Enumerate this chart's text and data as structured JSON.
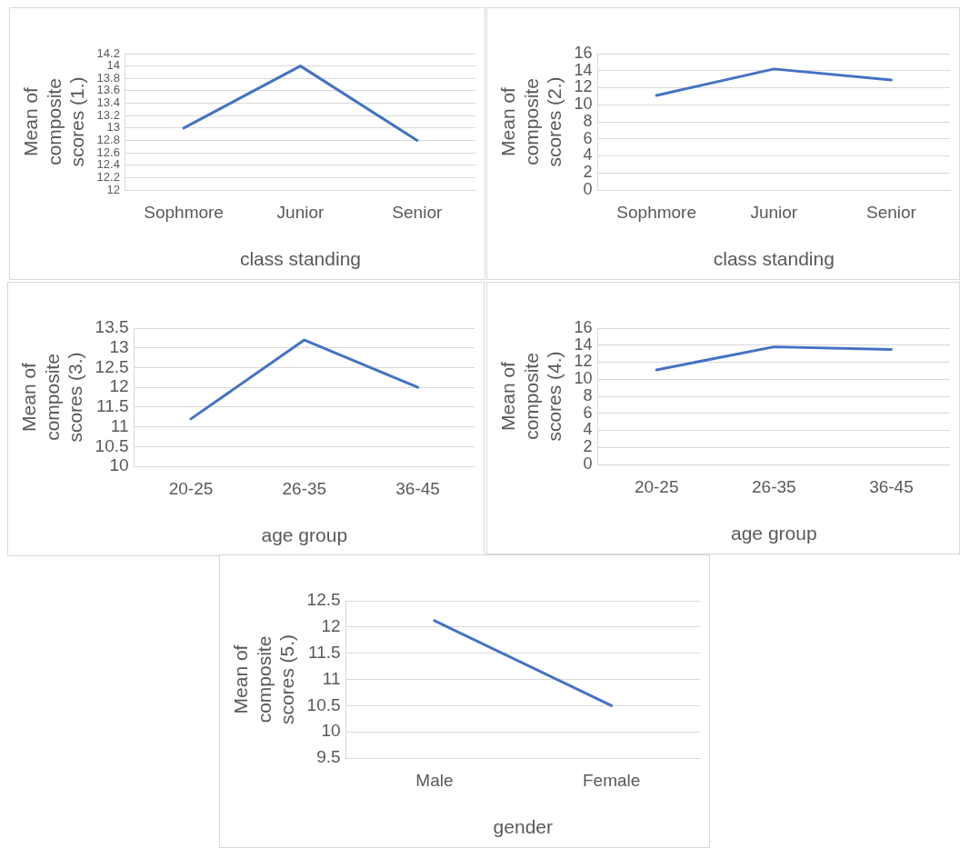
{
  "chart_data": [
    {
      "type": "line",
      "xlabel": "class standing",
      "ylabel": "Mean of composite scores (1.)",
      "categories": [
        "Sophmore",
        "Junior",
        "Senior"
      ],
      "series": [
        {
          "color": "#4472c4",
          "values": [
            13.0,
            14.0,
            12.8
          ]
        }
      ],
      "ylim": [
        12,
        14.2
      ],
      "yticks": [
        12,
        12.2,
        12.4,
        12.6,
        12.8,
        13,
        13.2,
        13.4,
        13.6,
        13.8,
        14,
        14.2
      ],
      "grid": "y",
      "marker": "none",
      "line_style": "solid",
      "legend": false
    },
    {
      "type": "line",
      "xlabel": "class standing",
      "ylabel": "Mean of composite scores (2.)",
      "categories": [
        "Sophmore",
        "Junior",
        "Senior"
      ],
      "series": [
        {
          "color": "#4472c4",
          "values": [
            11.1,
            14.2,
            12.9
          ]
        }
      ],
      "ylim": [
        0,
        16
      ],
      "yticks": [
        0,
        2,
        4,
        6,
        8,
        10,
        12,
        14,
        16
      ],
      "grid": "y",
      "marker": "none",
      "line_style": "solid",
      "legend": false
    },
    {
      "type": "line",
      "xlabel": "age group",
      "ylabel": "Mean of composite scores (3.)",
      "categories": [
        "20-25",
        "26-35",
        "36-45"
      ],
      "series": [
        {
          "color": "#4472c4",
          "values": [
            11.2,
            13.2,
            12.0
          ]
        }
      ],
      "ylim": [
        10,
        13.5
      ],
      "yticks": [
        10,
        10.5,
        11,
        11.5,
        12,
        12.5,
        13,
        13.5
      ],
      "grid": "y",
      "marker": "none",
      "line_style": "solid",
      "legend": false
    },
    {
      "type": "line",
      "xlabel": "age group",
      "ylabel": "Mean of composite scores (4.)",
      "categories": [
        "20-25",
        "26-35",
        "36-45"
      ],
      "series": [
        {
          "color": "#4472c4",
          "values": [
            11.1,
            13.8,
            13.5
          ]
        }
      ],
      "ylim": [
        0,
        16
      ],
      "yticks": [
        0,
        2,
        4,
        6,
        8,
        10,
        12,
        14,
        16
      ],
      "grid": "y",
      "marker": "none",
      "line_style": "solid",
      "legend": false
    },
    {
      "type": "line",
      "xlabel": "gender",
      "ylabel": "Mean of composite scores (5.)",
      "categories": [
        "Male",
        "Female"
      ],
      "series": [
        {
          "color": "#4472c4",
          "values": [
            12.12,
            10.5
          ]
        }
      ],
      "ylim": [
        9.5,
        12.5
      ],
      "yticks": [
        9.5,
        10,
        10.5,
        11,
        11.5,
        12,
        12.5
      ],
      "grid": "y",
      "marker": "none",
      "line_style": "solid",
      "legend": false
    }
  ]
}
